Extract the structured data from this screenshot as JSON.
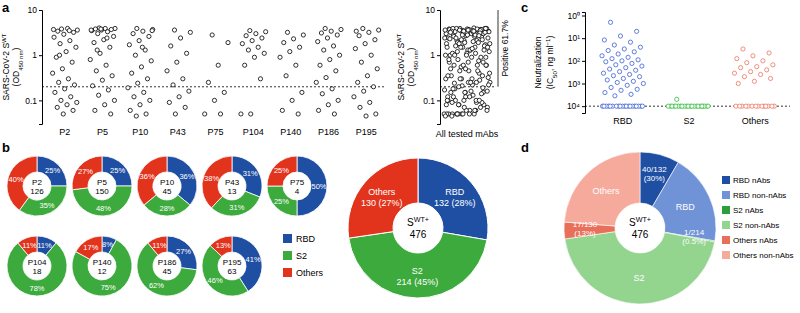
{
  "chart_data": [
    {
      "panel": "a",
      "type": "scatter",
      "categories": [
        "P2",
        "P5",
        "P10",
        "P43",
        "P75",
        "P104",
        "P140",
        "P186",
        "P195"
      ],
      "values": [
        [
          3.8,
          3.6,
          3.9,
          3.4,
          3.2,
          2.9,
          2.5,
          2.1,
          1.8,
          1.5,
          1.2,
          0.9,
          0.7,
          0.5,
          0.4,
          0.3,
          0.25,
          0.22,
          0.18,
          0.15,
          0.12,
          0.1,
          0.09,
          0.08,
          0.07,
          0.06,
          0.05,
          3.7,
          3.5,
          1.0
        ],
        [
          4.0,
          3.9,
          3.9,
          3.8,
          3.7,
          3.6,
          3.5,
          3.3,
          3.0,
          2.6,
          2.2,
          1.9,
          1.5,
          1.1,
          0.8,
          0.6,
          0.45,
          0.35,
          0.28,
          0.21,
          0.17,
          0.13,
          0.1,
          0.08,
          0.06,
          0.05,
          3.8,
          3.6,
          2.4,
          1.3
        ],
        [
          3.9,
          3.7,
          3.4,
          3.0,
          2.6,
          2.1,
          1.7,
          1.3,
          1.0,
          0.75,
          0.55,
          0.4,
          0.3,
          0.24,
          0.19,
          0.15,
          0.12,
          0.1,
          0.08,
          0.06,
          0.05,
          0.045,
          3.5,
          1.5
        ],
        [
          3.6,
          3.2,
          2.4,
          1.6,
          1.1,
          0.7,
          0.45,
          0.3,
          0.22,
          0.16,
          0.12,
          0.09,
          0.07,
          0.05
        ],
        [
          2.8,
          1.9,
          0.6,
          0.25,
          0.15,
          0.1,
          0.05,
          0.05
        ],
        [
          3.5,
          3.3,
          3.0,
          2.7,
          2.4,
          2.1,
          1.8,
          1.5,
          1.3,
          1.1,
          0.9,
          0.6,
          0.3,
          0.05,
          0.05
        ],
        [
          3.2,
          2.8,
          2.3,
          1.9,
          1.5,
          1.2,
          0.9,
          0.6,
          0.35,
          0.15,
          0.1,
          0.06,
          0.05
        ],
        [
          3.9,
          3.7,
          3.4,
          3.1,
          2.8,
          2.4,
          2.0,
          1.6,
          1.3,
          1.0,
          0.8,
          0.6,
          0.45,
          0.32,
          0.25,
          0.18,
          0.14,
          0.1,
          0.08,
          0.06,
          0.05
        ],
        [
          3.9,
          3.6,
          3.2,
          2.7,
          2.2,
          1.8,
          1.4,
          1.0,
          0.7,
          0.5,
          0.35,
          0.25,
          0.2,
          0.16,
          0.12,
          0.09,
          0.07,
          0.05,
          0.045,
          3.4
        ]
      ],
      "log": "y",
      "ylim": [
        0.03,
        10
      ],
      "yticks": [
        0.1,
        1,
        10
      ],
      "threshold": 0.2,
      "y_label": [
        [
          "SARS-CoV-2 S",
          {
            "sup": "WT"
          }
        ],
        [
          "(OD",
          {
            "sub": "450 nm"
          },
          ")"
        ]
      ],
      "all_label": "All tested mAbs",
      "annotation": "Positive 61.7%",
      "color": "#000000",
      "marker": "open-circle"
    },
    {
      "panel": "b",
      "type": "pie",
      "categories": [
        "RBD",
        "S2",
        "Others"
      ],
      "colors": [
        "#1f4fa3",
        "#3daa3d",
        "#e2341d"
      ],
      "series": [
        {
          "name": "P2",
          "total": 126,
          "values": [
            25,
            35,
            40
          ],
          "value_labels": [
            "25%",
            "35%",
            "40%"
          ]
        },
        {
          "name": "P5",
          "total": 150,
          "values": [
            25,
            48,
            27
          ],
          "value_labels": [
            "25%",
            "48%",
            "27%"
          ]
        },
        {
          "name": "P10",
          "total": 45,
          "values": [
            36,
            28,
            36
          ],
          "value_labels": [
            "36%",
            "28%",
            "36%"
          ]
        },
        {
          "name": "P43",
          "total": 13,
          "values": [
            31,
            31,
            38
          ],
          "value_labels": [
            "31%",
            "31%",
            "38%"
          ]
        },
        {
          "name": "P75",
          "total": 4,
          "values": [
            50,
            25,
            25
          ],
          "value_labels": [
            "50%",
            "25%",
            "25%"
          ]
        },
        {
          "name": "P104",
          "total": 18,
          "values": [
            11,
            78,
            11
          ],
          "value_labels": [
            "11%",
            "78%",
            "11%"
          ]
        },
        {
          "name": "P140",
          "total": 12,
          "values": [
            8,
            75,
            17
          ],
          "value_labels": [
            "8%",
            "75%",
            "17%"
          ]
        },
        {
          "name": "P186",
          "total": 45,
          "values": [
            27,
            62,
            11
          ],
          "value_labels": [
            "27%",
            "62%",
            "11%"
          ]
        },
        {
          "name": "P195",
          "total": 63,
          "values": [
            41,
            46,
            13
          ],
          "value_labels": [
            "41%",
            "46%",
            "13%"
          ]
        }
      ],
      "data_labels": true,
      "legend": "right"
    },
    {
      "type": "pie",
      "categories": [
        "RBD",
        "S2",
        "Others"
      ],
      "colors": [
        "#1f4fa3",
        "#3daa3d",
        "#e2341d"
      ],
      "values": [
        132,
        214,
        130
      ],
      "value_labels": [
        "132 (28%)",
        "214 (45%)",
        "130 (27%)"
      ],
      "center": [
        "S",
        {
          "sup": "WT+"
        }
      ],
      "total": 476,
      "data_labels": true
    },
    {
      "panel": "c",
      "type": "scatter",
      "categories": [
        "RBD",
        "S2",
        "Others"
      ],
      "colors": [
        "#3b5fd0",
        "#2ebd3a",
        "#ec7460"
      ],
      "values": [
        [
          2,
          5,
          8,
          12,
          15,
          20,
          25,
          30,
          35,
          40,
          50,
          60,
          70,
          80,
          90,
          100,
          110,
          130,
          150,
          170,
          200,
          230,
          260,
          300,
          350,
          400,
          450,
          500,
          600,
          700,
          800,
          900,
          1000,
          1200,
          1500,
          1800,
          2000,
          2500,
          3000,
          3500,
          10000,
          10000,
          10000,
          10000,
          10000,
          10000,
          10000,
          10000,
          10000,
          10000,
          10000,
          10000,
          10000,
          10000,
          10000,
          10000,
          10000,
          10000,
          10000,
          10000
        ],
        [
          5000,
          10000,
          10000,
          10000,
          10000,
          10000,
          10000,
          10000,
          10000,
          10000,
          10000,
          10000,
          10000,
          10000,
          10000,
          10000,
          10000,
          10000,
          10000,
          10000,
          10000,
          10000,
          10000
        ],
        [
          30,
          45,
          60,
          80,
          100,
          120,
          150,
          180,
          200,
          250,
          300,
          350,
          400,
          500,
          600,
          800,
          1000,
          10000,
          10000,
          10000,
          10000,
          10000,
          10000,
          10000,
          10000,
          10000,
          10000,
          10000,
          10000,
          10000,
          10000
        ]
      ],
      "log": "y",
      "ylim": [
        20000,
        0.7
      ],
      "yticks": [
        {
          "value": 1,
          "label": "10⁰"
        },
        {
          "value": 10,
          "label": "10¹"
        },
        {
          "value": 100,
          "label": "10²"
        },
        {
          "value": 1000,
          "label": "10³"
        },
        {
          "value": 10000,
          "label": "10⁴"
        }
      ],
      "threshold": 10000,
      "y_label": [
        [
          "Neutralization"
        ],
        [
          "(IC",
          {
            "sub": "50"
          },
          ", ng ml",
          {
            "sup": "−1"
          },
          ")"
        ]
      ],
      "marker": "open-circle"
    },
    {
      "panel": "d",
      "type": "pie",
      "categories": [
        "RBD nAbs",
        "RBD non-nAbs",
        "S2 nAbs",
        "S2 non-nAbs",
        "Others nAbs",
        "Others non-nAbs"
      ],
      "colors": [
        "#1f4fa3",
        "#6f93d6",
        "#2f9e3a",
        "#93d48e",
        "#e8705a",
        "#f5aa9c"
      ],
      "values": [
        40,
        92,
        1,
        213,
        17,
        113
      ],
      "value_labels": [
        "40/132 (30%)",
        null,
        "1/214 (0.5%)",
        null,
        "17/130 (13%)",
        null
      ],
      "groups": [
        "RBD",
        "S2",
        "Others"
      ],
      "center": [
        "S",
        {
          "sup": "WT+"
        }
      ],
      "total": 476,
      "data_labels": true,
      "legend": "right"
    }
  ]
}
